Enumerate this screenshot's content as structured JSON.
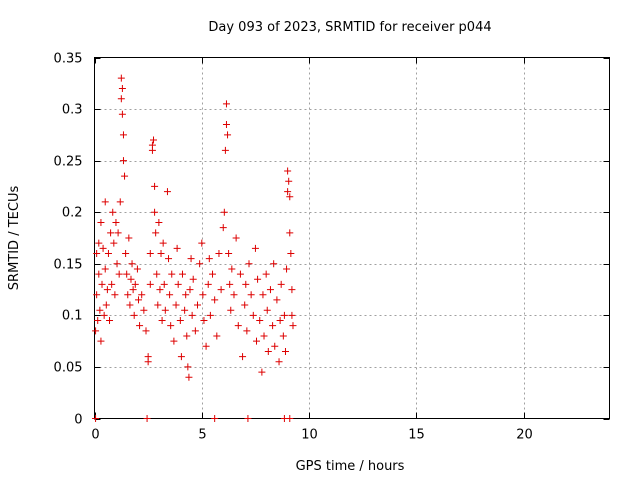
{
  "chart_data": {
    "type": "scatter",
    "title": "Day 093 of 2023, SRMTID for receiver p044",
    "xlabel": "GPS time / hours",
    "ylabel": "SRMTID / TECUs",
    "xlim": [
      0,
      24
    ],
    "ylim": [
      0,
      0.35
    ],
    "grid": true,
    "marker": "plus",
    "color": "#dd0000",
    "xticks": [
      0,
      5,
      10,
      15,
      20
    ],
    "xtick_labels": [
      "0",
      "5",
      "10",
      "15",
      "20"
    ],
    "yticks": [
      0,
      0.05,
      0.1,
      0.15,
      0.2,
      0.25,
      0.3,
      0.35
    ],
    "ytick_labels": [
      "0",
      "0.05",
      "0.1",
      "0.15",
      "0.2",
      "0.25",
      "0.3",
      "0.35"
    ],
    "series": [
      {
        "name": "SRMTID",
        "points": [
          [
            0.05,
            0.085
          ],
          [
            0.1,
            0.12
          ],
          [
            0.1,
            0.16
          ],
          [
            0.15,
            0.095
          ],
          [
            0.2,
            0.14
          ],
          [
            0.2,
            0.17
          ],
          [
            0.25,
            0.105
          ],
          [
            0.3,
            0.19
          ],
          [
            0.3,
            0.075
          ],
          [
            0.35,
            0.13
          ],
          [
            0.4,
            0.165
          ],
          [
            0.45,
            0.1
          ],
          [
            0.5,
            0.145
          ],
          [
            0.5,
            0.21
          ],
          [
            0.55,
            0.11
          ],
          [
            0.6,
            0.125
          ],
          [
            0.65,
            0.16
          ],
          [
            0.7,
            0.095
          ],
          [
            0.75,
            0.18
          ],
          [
            0.8,
            0.13
          ],
          [
            0.85,
            0.2
          ],
          [
            0.9,
            0.17
          ],
          [
            0.95,
            0.12
          ],
          [
            1.0,
            0.19
          ],
          [
            1.05,
            0.15
          ],
          [
            1.1,
            0.18
          ],
          [
            1.15,
            0.14
          ],
          [
            1.2,
            0.21
          ],
          [
            1.25,
            0.33
          ],
          [
            1.25,
            0.31
          ],
          [
            1.3,
            0.295
          ],
          [
            1.3,
            0.32
          ],
          [
            1.35,
            0.275
          ],
          [
            1.35,
            0.25
          ],
          [
            1.4,
            0.235
          ],
          [
            1.45,
            0.16
          ],
          [
            1.5,
            0.14
          ],
          [
            1.55,
            0.12
          ],
          [
            1.6,
            0.175
          ],
          [
            1.65,
            0.11
          ],
          [
            1.7,
            0.135
          ],
          [
            1.75,
            0.15
          ],
          [
            1.8,
            0.125
          ],
          [
            1.85,
            0.1
          ],
          [
            1.9,
            0.13
          ],
          [
            2.0,
            0.145
          ],
          [
            2.05,
            0.115
          ],
          [
            2.1,
            0.09
          ],
          [
            2.2,
            0.12
          ],
          [
            2.3,
            0.105
          ],
          [
            2.4,
            0.085
          ],
          [
            2.5,
            0.06
          ],
          [
            2.5,
            0.055
          ],
          [
            2.6,
            0.13
          ],
          [
            2.6,
            0.16
          ],
          [
            2.7,
            0.265
          ],
          [
            2.7,
            0.26
          ],
          [
            2.75,
            0.27
          ],
          [
            2.8,
            0.225
          ],
          [
            2.8,
            0.2
          ],
          [
            2.85,
            0.18
          ],
          [
            2.9,
            0.14
          ],
          [
            2.95,
            0.11
          ],
          [
            3.0,
            0.19
          ],
          [
            3.05,
            0.125
          ],
          [
            3.1,
            0.16
          ],
          [
            3.15,
            0.095
          ],
          [
            3.2,
            0.17
          ],
          [
            3.25,
            0.13
          ],
          [
            3.3,
            0.105
          ],
          [
            3.4,
            0.22
          ],
          [
            3.45,
            0.155
          ],
          [
            3.5,
            0.12
          ],
          [
            3.55,
            0.09
          ],
          [
            3.6,
            0.14
          ],
          [
            3.7,
            0.075
          ],
          [
            3.8,
            0.11
          ],
          [
            3.85,
            0.165
          ],
          [
            3.9,
            0.13
          ],
          [
            4.0,
            0.095
          ],
          [
            4.05,
            0.06
          ],
          [
            4.1,
            0.14
          ],
          [
            4.2,
            0.105
          ],
          [
            4.25,
            0.12
          ],
          [
            4.3,
            0.08
          ],
          [
            4.35,
            0.05
          ],
          [
            4.4,
            0.04
          ],
          [
            4.45,
            0.125
          ],
          [
            4.5,
            0.155
          ],
          [
            4.55,
            0.1
          ],
          [
            4.6,
            0.135
          ],
          [
            4.7,
            0.085
          ],
          [
            4.8,
            0.11
          ],
          [
            4.9,
            0.15
          ],
          [
            5.0,
            0.17
          ],
          [
            5.05,
            0.12
          ],
          [
            5.1,
            0.095
          ],
          [
            5.2,
            0.07
          ],
          [
            5.3,
            0.13
          ],
          [
            5.35,
            0.155
          ],
          [
            5.4,
            0.1
          ],
          [
            5.5,
            0.14
          ],
          [
            5.6,
            0.115
          ],
          [
            5.7,
            0.08
          ],
          [
            5.8,
            0.16
          ],
          [
            5.9,
            0.125
          ],
          [
            6.0,
            0.185
          ],
          [
            6.05,
            0.2
          ],
          [
            6.1,
            0.26
          ],
          [
            6.15,
            0.285
          ],
          [
            6.15,
            0.305
          ],
          [
            6.2,
            0.275
          ],
          [
            6.25,
            0.16
          ],
          [
            6.3,
            0.13
          ],
          [
            6.35,
            0.105
          ],
          [
            6.4,
            0.145
          ],
          [
            6.5,
            0.12
          ],
          [
            6.6,
            0.175
          ],
          [
            6.7,
            0.09
          ],
          [
            6.8,
            0.14
          ],
          [
            6.9,
            0.06
          ],
          [
            7.0,
            0.11
          ],
          [
            7.05,
            0.13
          ],
          [
            7.1,
            0.085
          ],
          [
            7.2,
            0.15
          ],
          [
            7.3,
            0.12
          ],
          [
            7.4,
            0.1
          ],
          [
            7.5,
            0.165
          ],
          [
            7.55,
            0.075
          ],
          [
            7.6,
            0.135
          ],
          [
            7.7,
            0.095
          ],
          [
            7.8,
            0.045
          ],
          [
            7.85,
            0.12
          ],
          [
            7.9,
            0.08
          ],
          [
            8.0,
            0.14
          ],
          [
            8.05,
            0.105
          ],
          [
            8.1,
            0.065
          ],
          [
            8.2,
            0.125
          ],
          [
            8.3,
            0.09
          ],
          [
            8.35,
            0.15
          ],
          [
            8.4,
            0.07
          ],
          [
            8.5,
            0.115
          ],
          [
            8.6,
            0.055
          ],
          [
            8.65,
            0.095
          ],
          [
            8.7,
            0.13
          ],
          [
            8.8,
            0.08
          ],
          [
            8.85,
            0.1
          ],
          [
            8.9,
            0.065
          ],
          [
            8.95,
            0.145
          ],
          [
            9.0,
            0.24
          ],
          [
            9.0,
            0.22
          ],
          [
            9.05,
            0.23
          ],
          [
            9.1,
            0.215
          ],
          [
            9.1,
            0.18
          ],
          [
            9.15,
            0.16
          ],
          [
            9.2,
            0.125
          ],
          [
            9.2,
            0.1
          ],
          [
            9.25,
            0.09
          ],
          [
            0.05,
            0.0
          ],
          [
            2.45,
            0.0
          ],
          [
            5.6,
            0.0
          ],
          [
            7.15,
            0.0
          ],
          [
            8.85,
            0.0
          ],
          [
            9.1,
            0.0
          ]
        ]
      }
    ]
  }
}
